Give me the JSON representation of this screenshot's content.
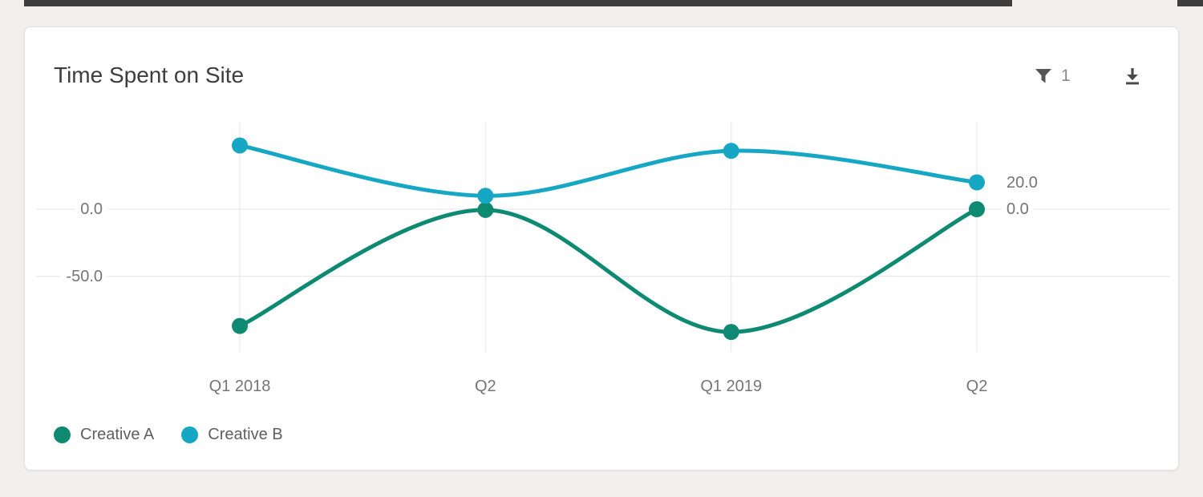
{
  "page": {
    "background": "#f1f0ef",
    "top_bar": {
      "color": "#3e3e3e"
    }
  },
  "card": {
    "title": "Time Spent on Site",
    "toolbar": {
      "filter_icon": "funnel-icon",
      "filter_count": "1",
      "download_icon": "download-icon"
    }
  },
  "chart_data": {
    "type": "line",
    "title": "Time Spent on Site",
    "smooth": true,
    "grid": true,
    "legend_position": "bottom-left",
    "categories": [
      "Q1 2018",
      "Q2",
      "Q1 2019",
      "Q2"
    ],
    "series": [
      {
        "name": "Creative A",
        "color": "#0f8a72",
        "values": [
          -87,
          -0.5,
          -91.5,
          0
        ],
        "end_label": "0.0"
      },
      {
        "name": "Creative B",
        "color": "#15a7c4",
        "values": [
          47.5,
          10,
          43.5,
          20
        ],
        "end_label": "20.0"
      }
    ],
    "yticks": [
      {
        "value": 0,
        "label": "0.0"
      },
      {
        "value": -50,
        "label": "-50.0"
      }
    ],
    "ylim": [
      -106,
      65
    ],
    "xlabel": "",
    "ylabel": "",
    "grid_color": "#e4e4e4",
    "tick_color": "#757575"
  }
}
